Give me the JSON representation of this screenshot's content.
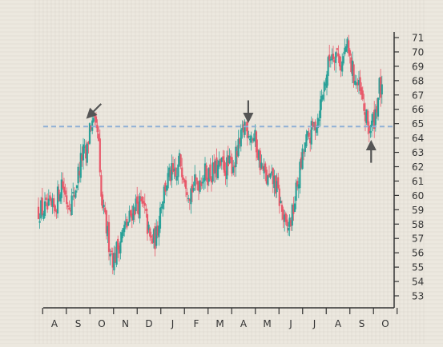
{
  "chart_data": {
    "type": "candlestick",
    "grid": true,
    "colors": {
      "background": "#ece8df",
      "grid": "#d9d4ca",
      "up": "#2aa198",
      "down": "#e8596a",
      "axis": "#333333",
      "reference_line": "#8fb0d6",
      "arrow": "#555555"
    },
    "y_axis": {
      "position": "right",
      "range": [
        52,
        71.5
      ],
      "ticks": [
        53,
        54,
        55,
        56,
        57,
        58,
        59,
        60,
        61,
        62,
        63,
        64,
        65,
        66,
        67,
        68,
        69,
        70,
        71
      ]
    },
    "x_axis": {
      "ticks": [
        "A",
        "S",
        "O",
        "N",
        "D",
        "J",
        "F",
        "M",
        "A",
        "M",
        "J",
        "J",
        "A",
        "S",
        "O"
      ]
    },
    "reference_line": {
      "y": 64.8,
      "style": "dashed"
    },
    "annotations": [
      {
        "type": "arrow",
        "direction": "down-left",
        "near": {
          "x_index": 1.5,
          "y": 65.6
        }
      },
      {
        "type": "arrow",
        "direction": "down",
        "near": {
          "x_index": 8.2,
          "y": 65.4
        }
      },
      {
        "type": "arrow",
        "direction": "up",
        "near": {
          "x_index": 13.4,
          "y": 63.5
        }
      }
    ],
    "price_anchors": [
      [
        0.0,
        59.0
      ],
      [
        0.3,
        61.0
      ],
      [
        0.55,
        59.5
      ],
      [
        0.8,
        59.8
      ],
      [
        1.0,
        61.5
      ],
      [
        1.2,
        63.0
      ],
      [
        1.35,
        62.5
      ],
      [
        1.5,
        65.0
      ],
      [
        1.65,
        64.8
      ],
      [
        1.85,
        64.2
      ],
      [
        1.95,
        60.0
      ],
      [
        2.05,
        59.0
      ],
      [
        2.3,
        56.8
      ],
      [
        2.5,
        55.5
      ],
      [
        2.7,
        56.5
      ],
      [
        2.9,
        57.5
      ],
      [
        3.1,
        58.0
      ],
      [
        3.3,
        59.0
      ],
      [
        3.5,
        59.5
      ],
      [
        3.8,
        59.0
      ],
      [
        4.05,
        56.8
      ],
      [
        4.3,
        57.0
      ],
      [
        4.5,
        59.5
      ],
      [
        4.75,
        61.0
      ],
      [
        4.95,
        61.5
      ],
      [
        5.15,
        61.0
      ],
      [
        5.3,
        62.5
      ],
      [
        5.5,
        61.5
      ],
      [
        5.7,
        60.3
      ],
      [
        6.0,
        60.8
      ],
      [
        6.3,
        61.5
      ],
      [
        6.6,
        61.5
      ],
      [
        6.9,
        61.8
      ],
      [
        7.1,
        62.0
      ],
      [
        7.35,
        62.0
      ],
      [
        7.6,
        62.3
      ],
      [
        7.85,
        63.5
      ],
      [
        8.05,
        65.0
      ],
      [
        8.3,
        64.3
      ],
      [
        8.5,
        63.8
      ],
      [
        8.75,
        62.0
      ],
      [
        9.0,
        61.0
      ],
      [
        9.3,
        61.0
      ],
      [
        9.55,
        59.5
      ],
      [
        9.8,
        57.5
      ],
      [
        10.05,
        58.5
      ],
      [
        10.3,
        61.0
      ],
      [
        10.6,
        63.5
      ],
      [
        10.9,
        64.5
      ],
      [
        11.15,
        65.5
      ],
      [
        11.45,
        68.0
      ],
      [
        11.7,
        70.0
      ],
      [
        11.95,
        70.0
      ],
      [
        12.15,
        69.0
      ],
      [
        12.35,
        70.5
      ],
      [
        12.55,
        69.0
      ],
      [
        12.75,
        68.0
      ],
      [
        12.95,
        67.0
      ],
      [
        13.15,
        65.5
      ],
      [
        13.35,
        64.5
      ],
      [
        13.55,
        65.5
      ],
      [
        13.75,
        67.5
      ],
      [
        13.95,
        66.5
      ],
      [
        14.1,
        68.5
      ],
      [
        14.2,
        69.5
      ]
    ]
  }
}
